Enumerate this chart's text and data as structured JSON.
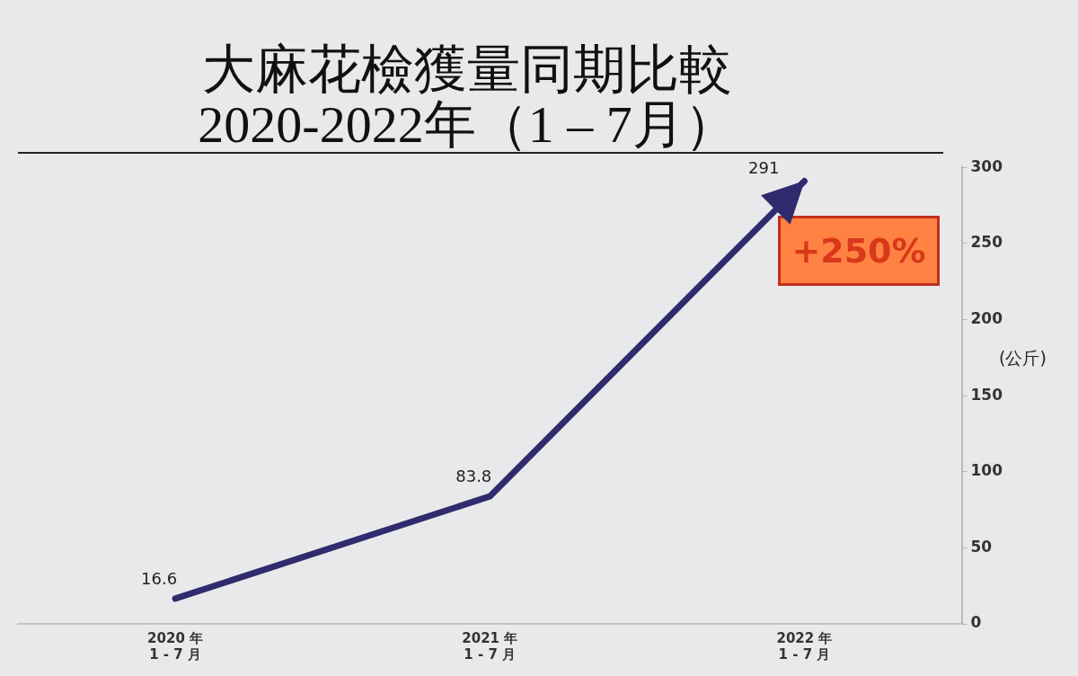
{
  "chart_data": {
    "type": "line",
    "title": "大麻花檢獲量同期比較",
    "subtitle": "2020-2022年（1 – 7月）",
    "ylabel": "(公斤)",
    "categories": [
      "2020 年\n1 - 7 月",
      "2021 年\n1 - 7 月",
      "2022 年\n1 - 7 月"
    ],
    "series": [
      {
        "color": "#2f2b6e",
        "values": [
          16.6,
          83.8,
          291
        ]
      }
    ],
    "ylim": [
      0,
      300
    ],
    "yticks": [
      0,
      50,
      100,
      150,
      200,
      250,
      300
    ],
    "grid": false,
    "legend": false,
    "marker": "none",
    "line_style": "solid",
    "data_labels": true,
    "annotations": [
      "+250%"
    ]
  }
}
